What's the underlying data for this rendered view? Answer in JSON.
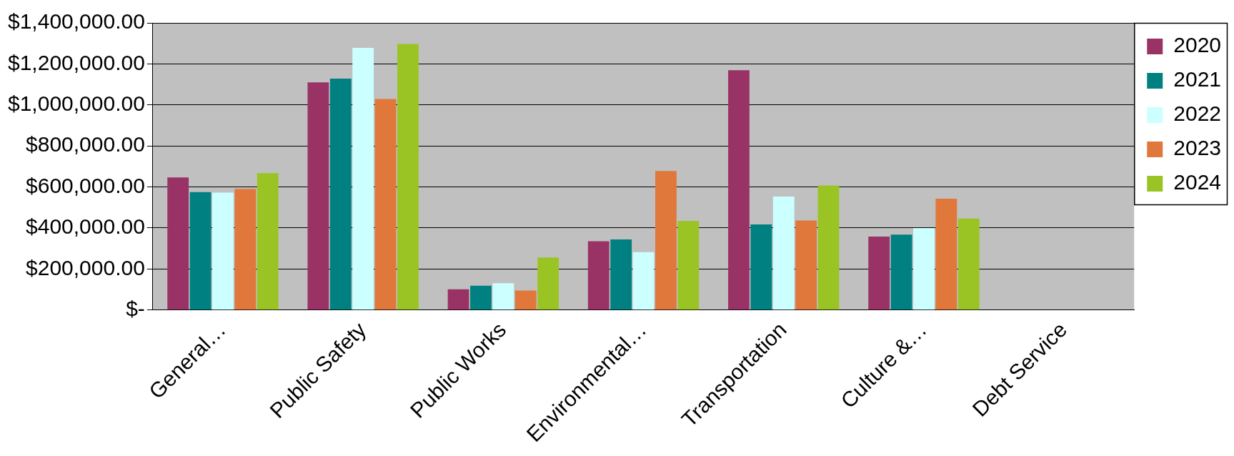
{
  "chart_data": {
    "type": "bar",
    "categories": [
      "General…",
      "Public Safety",
      "Public Works",
      "Environmental…",
      "Transportation",
      "Culture &…",
      "Debt Service"
    ],
    "series": [
      {
        "name": "2020",
        "color": "#993366",
        "values": [
          646000,
          1110000,
          101000,
          335000,
          1169000,
          358000,
          null
        ]
      },
      {
        "name": "2021",
        "color": "#008080",
        "values": [
          575000,
          1128000,
          118000,
          344000,
          417000,
          368000,
          null
        ]
      },
      {
        "name": "2022",
        "color": "#ccffff",
        "values": [
          572000,
          1278000,
          131000,
          282000,
          553000,
          400000,
          null
        ]
      },
      {
        "name": "2023",
        "color": "#e0783c",
        "values": [
          591000,
          1029000,
          95000,
          678000,
          436000,
          543000,
          null
        ]
      },
      {
        "name": "2024",
        "color": "#99c423",
        "values": [
          667000,
          1297000,
          256000,
          434000,
          607000,
          446000,
          null
        ]
      }
    ],
    "ylim": [
      0,
      1400000
    ],
    "yticks": [
      {
        "value": 0,
        "label": "$-"
      },
      {
        "value": 200000,
        "label": "$200,000.00"
      },
      {
        "value": 400000,
        "label": "$400,000.00"
      },
      {
        "value": 600000,
        "label": "$600,000.00"
      },
      {
        "value": 800000,
        "label": "$800,000.00"
      },
      {
        "value": 1000000,
        "label": "$1,000,000.00"
      },
      {
        "value": 1200000,
        "label": "$1,200,000.00"
      },
      {
        "value": 1400000,
        "label": "$1,400,000.00"
      }
    ],
    "grid": "y",
    "legend": "top right"
  }
}
